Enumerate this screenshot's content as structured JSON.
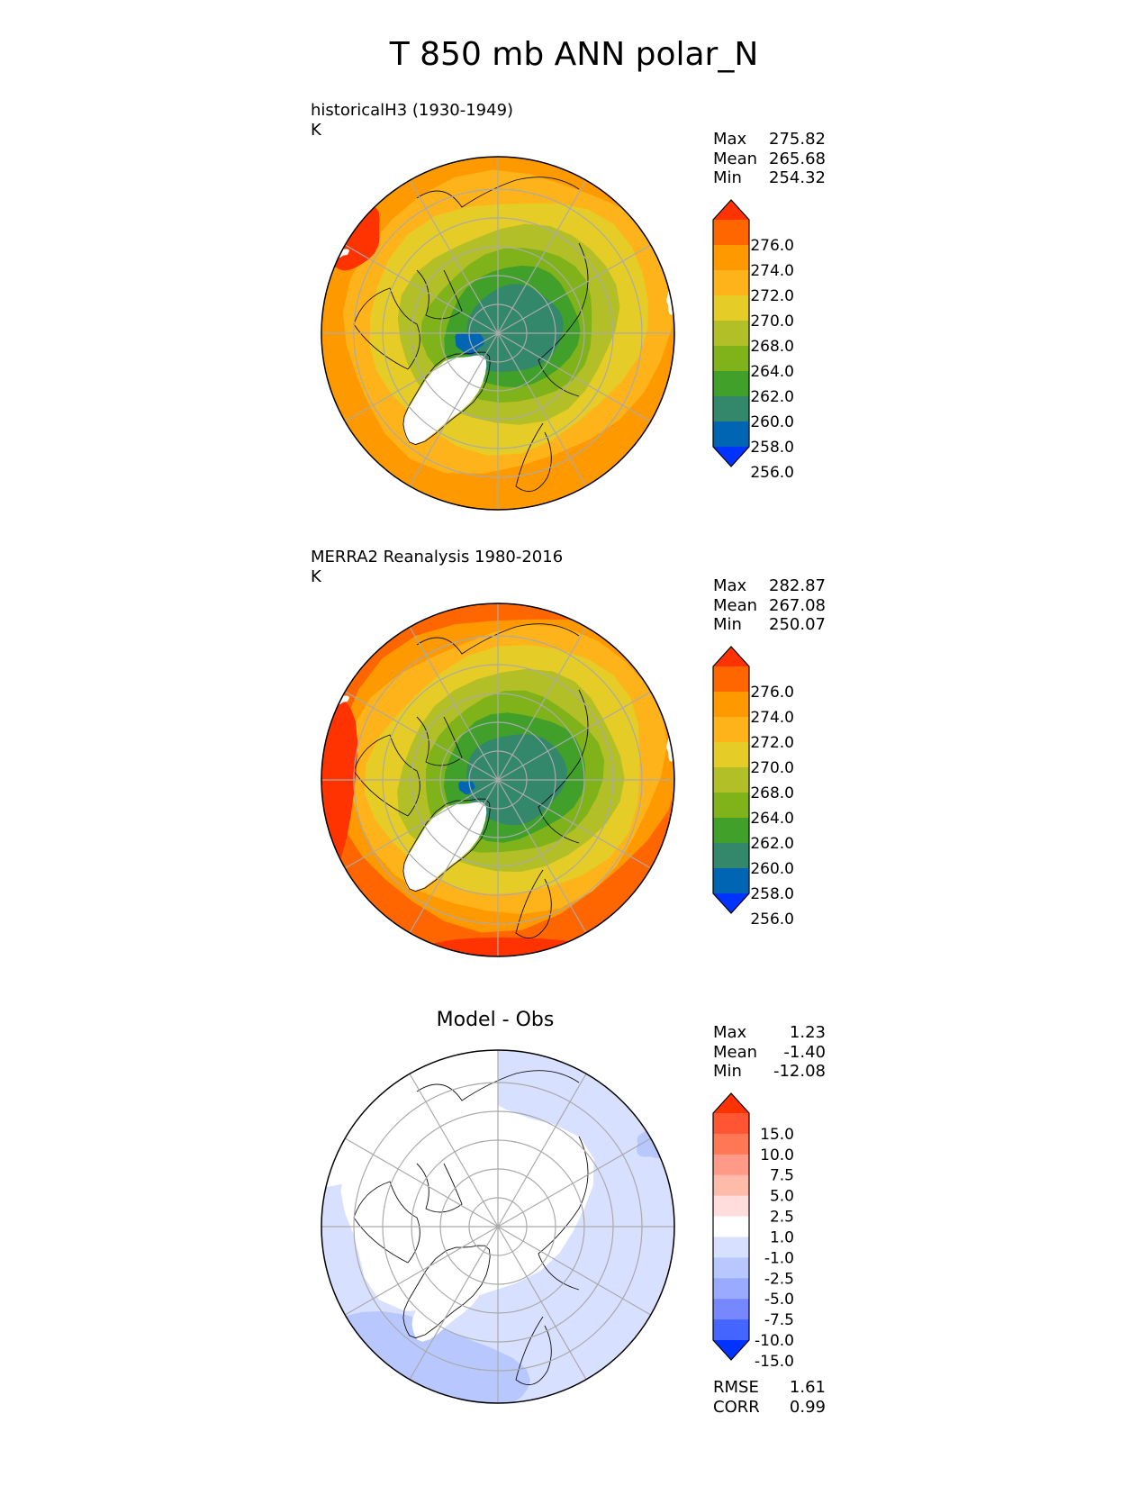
{
  "title": "T 850 mb ANN polar_N",
  "panels": [
    {
      "id": "test",
      "title": "historicalH3 (1930-1949)",
      "units": "K",
      "stats": [
        {
          "label": "Max",
          "value": "275.82"
        },
        {
          "label": "Mean",
          "value": "265.68"
        },
        {
          "label": "Min",
          "value": "254.32"
        }
      ]
    },
    {
      "id": "ref",
      "title": "MERRA2 Reanalysis 1980-2016",
      "units": "K",
      "stats": [
        {
          "label": "Max",
          "value": "282.87"
        },
        {
          "label": "Mean",
          "value": "267.08"
        },
        {
          "label": "Min",
          "value": "250.07"
        }
      ]
    },
    {
      "id": "diff",
      "title": "Model - Obs",
      "stats": [
        {
          "label": "Max",
          "value": "1.23"
        },
        {
          "label": "Mean",
          "value": "-1.40"
        },
        {
          "label": "Min",
          "value": "-12.08"
        }
      ],
      "metrics": [
        {
          "label": "RMSE",
          "value": "1.61"
        },
        {
          "label": "CORR",
          "value": "0.99"
        }
      ]
    }
  ],
  "chart_data": [
    {
      "type": "heatmap",
      "projection": "north-polar-stereographic",
      "title": "historicalH3 (1930-1949)",
      "units": "K",
      "colorbar": {
        "levels": [
          "276.0",
          "274.0",
          "272.0",
          "270.0",
          "268.0",
          "264.0",
          "262.0",
          "260.0",
          "258.0",
          "256.0"
        ],
        "colors": [
          "#ff3300",
          "#ff6600",
          "#ff9900",
          "#ffb31a",
          "#e6cc26",
          "#b3bf26",
          "#80b31a",
          "#40a02a",
          "#33876b",
          "#0066b3",
          "#0033ff"
        ],
        "extend": "both"
      },
      "stats": {
        "max": 275.82,
        "mean": 265.68,
        "min": 254.32
      }
    },
    {
      "type": "heatmap",
      "projection": "north-polar-stereographic",
      "title": "MERRA2 Reanalysis 1980-2016",
      "units": "K",
      "colorbar": {
        "levels": [
          "276.0",
          "274.0",
          "272.0",
          "270.0",
          "268.0",
          "264.0",
          "262.0",
          "260.0",
          "258.0",
          "256.0"
        ],
        "colors": [
          "#ff3300",
          "#ff6600",
          "#ff9900",
          "#ffb31a",
          "#e6cc26",
          "#b3bf26",
          "#80b31a",
          "#40a02a",
          "#33876b",
          "#0066b3",
          "#0033ff"
        ],
        "extend": "both"
      },
      "stats": {
        "max": 282.87,
        "mean": 267.08,
        "min": 250.07
      }
    },
    {
      "type": "heatmap",
      "projection": "north-polar-stereographic",
      "title": "Model - Obs",
      "colorbar": {
        "levels": [
          "15.0",
          "10.0",
          "7.5",
          "5.0",
          "2.5",
          "1.0",
          "-1.0",
          "-2.5",
          "-5.0",
          "-7.5",
          "-10.0",
          "-15.0"
        ],
        "colors": [
          "#ff3300",
          "#ff5533",
          "#ff7755",
          "#ff9988",
          "#ffbbaa",
          "#ffdddd",
          "#ffffff",
          "#d8e0ff",
          "#b8c8ff",
          "#99aaff",
          "#7788ff",
          "#4466ff",
          "#0033ff"
        ],
        "extend": "both"
      },
      "stats": {
        "max": 1.23,
        "mean": -1.4,
        "min": -12.08
      },
      "rmse": 1.61,
      "corr": 0.99
    }
  ]
}
